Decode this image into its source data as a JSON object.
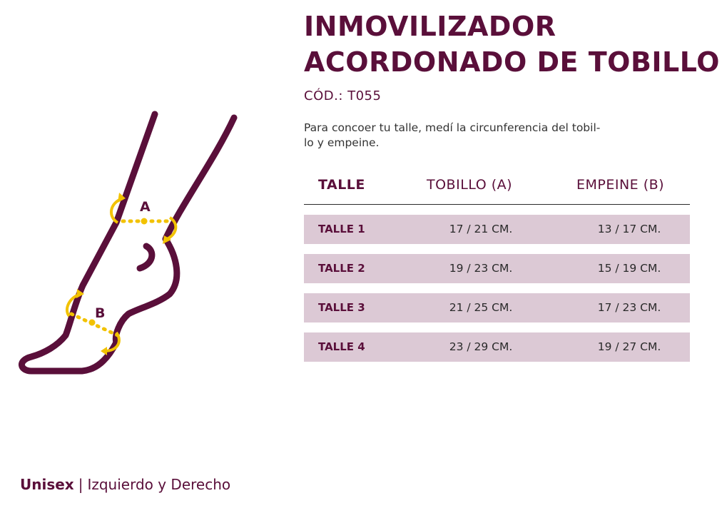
{
  "title": {
    "line1": "INMOVILIZADOR",
    "line2": "ACORDONADO DE TOBILLO"
  },
  "code": "CÓD.: T055",
  "description": {
    "line1": "Para concoer tu talle, medí la circunferencia del tobil-",
    "line2": "lo y empeine."
  },
  "diagram": {
    "label_a": "A",
    "label_b": "B",
    "colors": {
      "outline": "#5a0f3a",
      "measure": "#f2c200"
    }
  },
  "table": {
    "headers": {
      "size": "TALLE",
      "ankle": "TOBILLO (A)",
      "instep": "EMPEINE (B)"
    },
    "rows": [
      {
        "size": "TALLE 1",
        "ankle": "17 / 21 CM.",
        "instep": "13 / 17 CM."
      },
      {
        "size": "TALLE 2",
        "ankle": "19 / 23 CM.",
        "instep": "15 / 19 CM."
      },
      {
        "size": "TALLE 3",
        "ankle": "21 / 25 CM.",
        "instep": "17 / 23 CM."
      },
      {
        "size": "TALLE 4",
        "ankle": "23 / 29 CM.",
        "instep": "19 / 27 CM."
      }
    ],
    "row_color": "#dcc9d5"
  },
  "footer": {
    "bold": "Unisex",
    "separator": "|",
    "rest": "Izquierdo y Derecho"
  }
}
